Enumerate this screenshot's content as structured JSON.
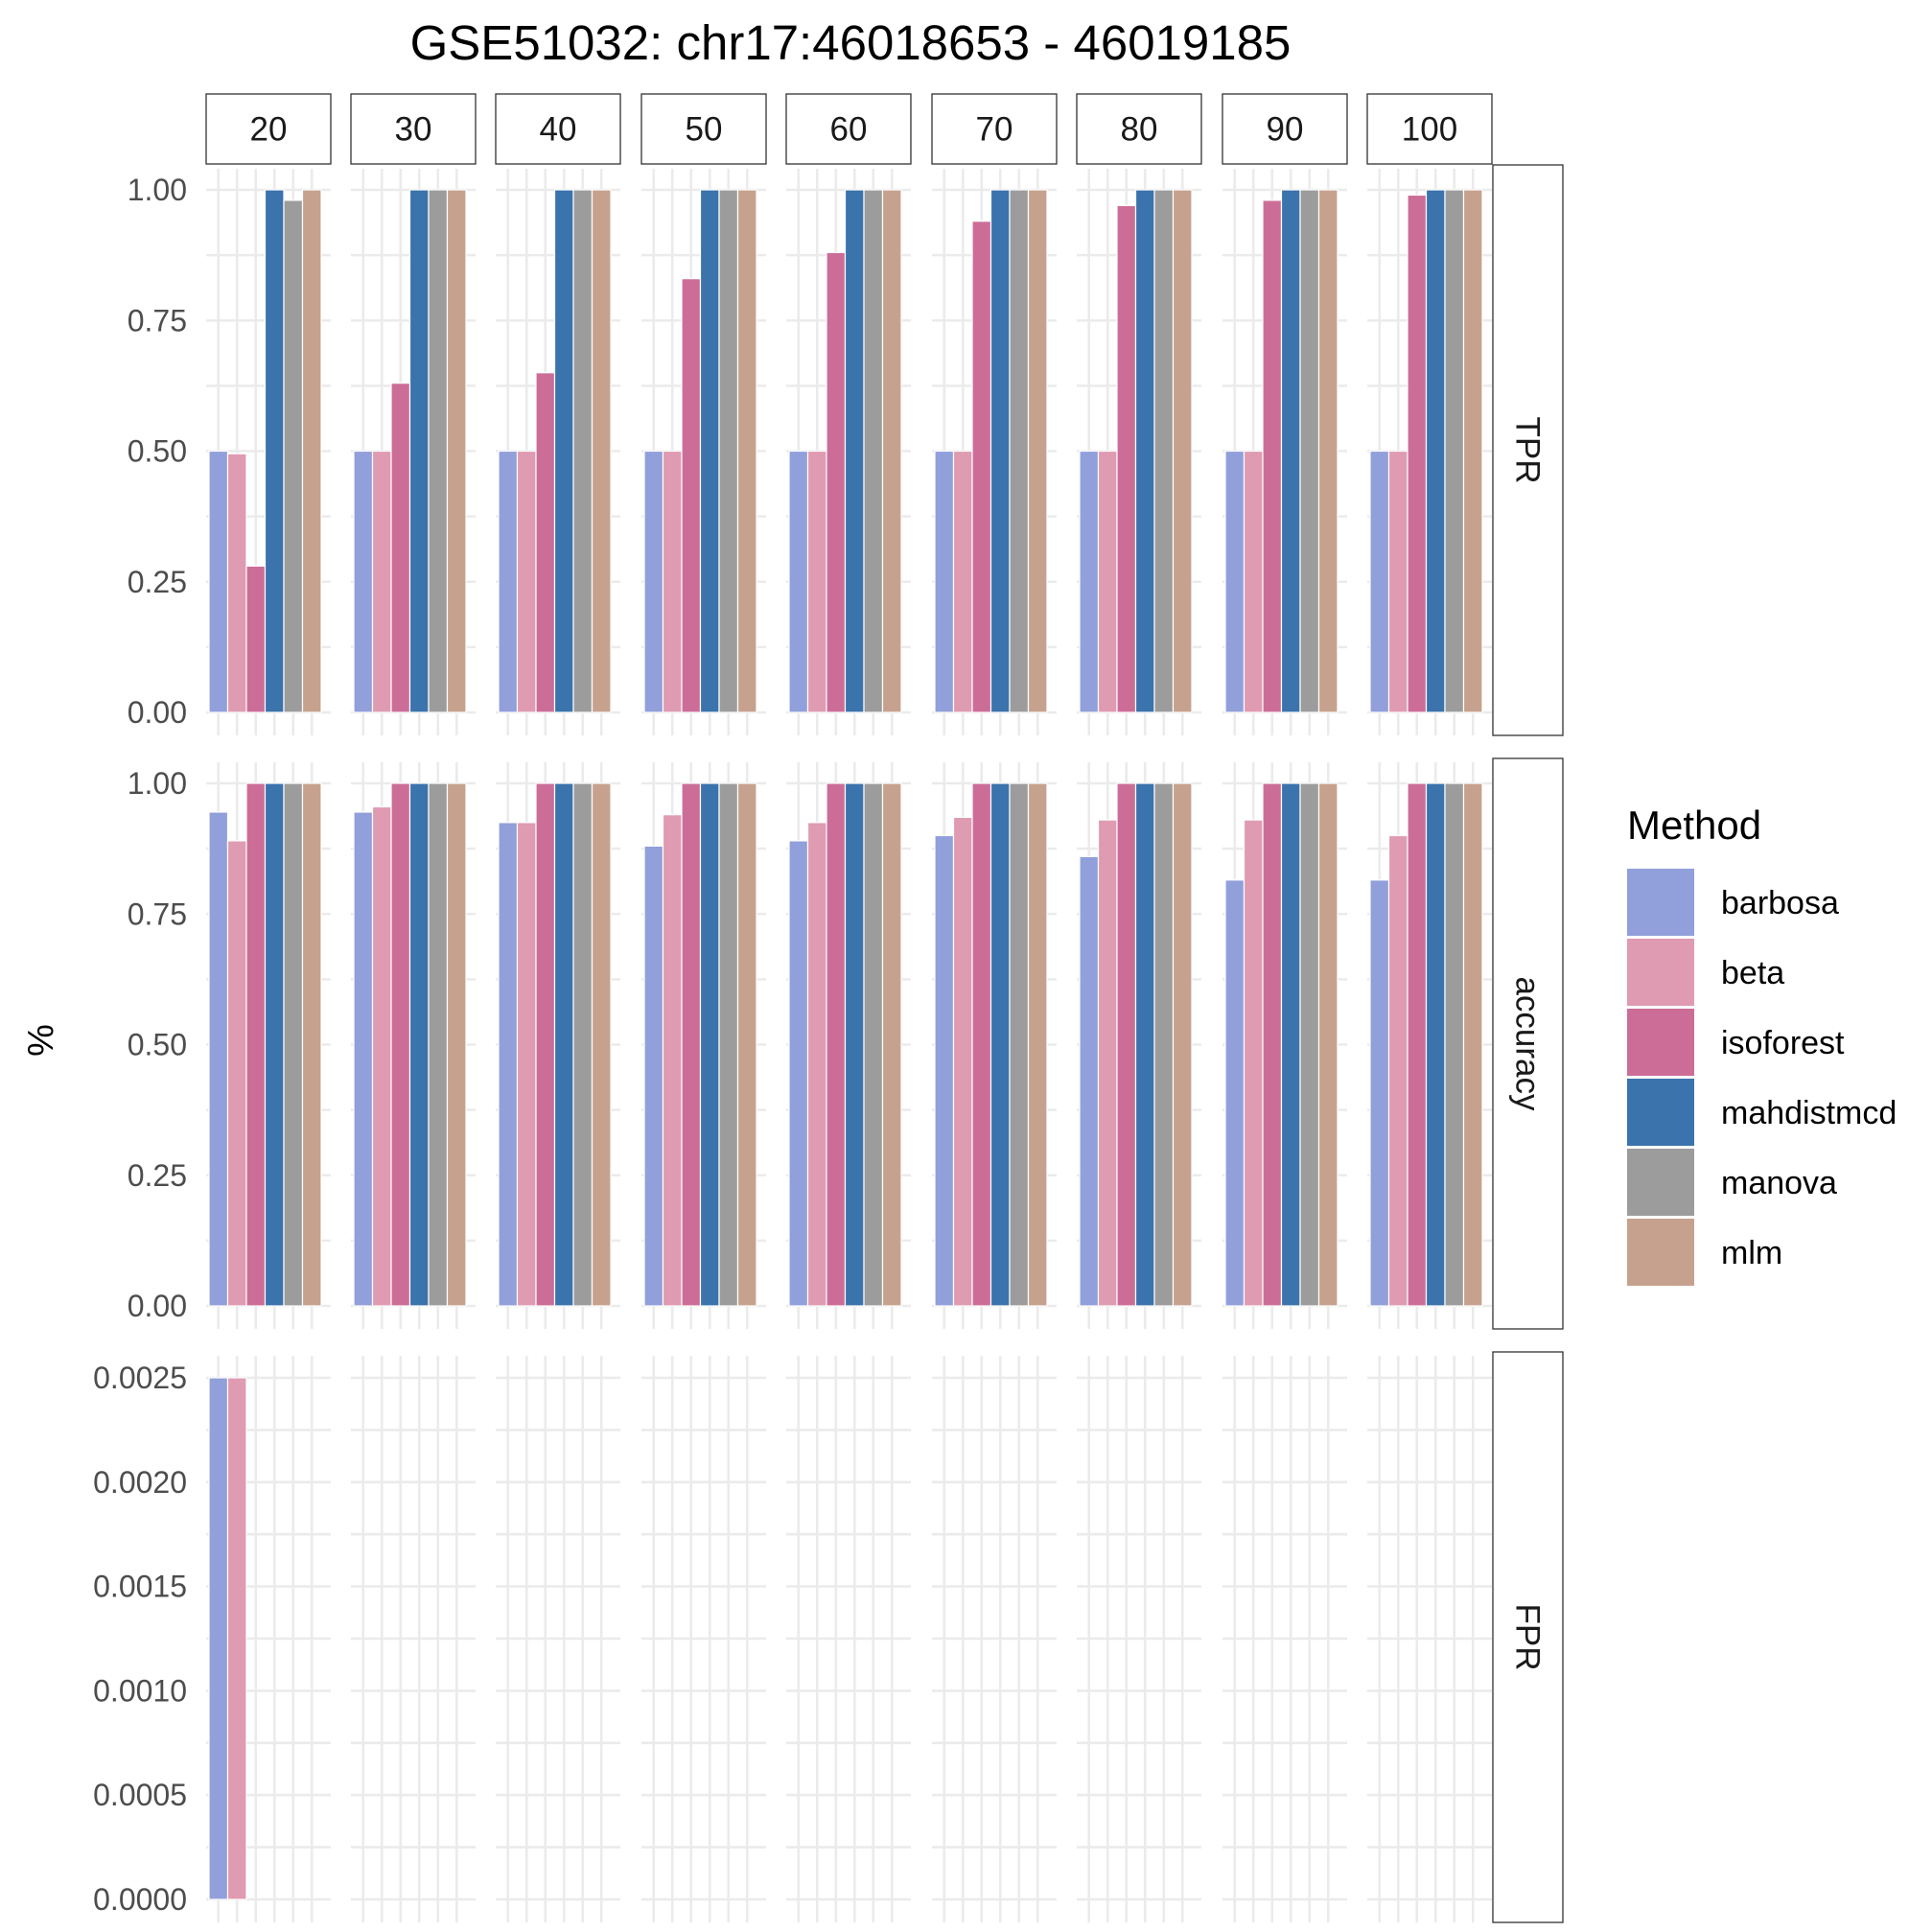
{
  "chart_data": {
    "type": "bar",
    "title": "GSE51032: chr17:46018653 - 46019185",
    "ylabel": "%",
    "xlabel": "",
    "columns": [
      "20",
      "30",
      "40",
      "50",
      "60",
      "70",
      "80",
      "90",
      "100"
    ],
    "methods": [
      "barbosa",
      "beta",
      "isoforest",
      "mahdistmcd",
      "manova",
      "mlm"
    ],
    "colors": {
      "barbosa": "#919FDA",
      "beta": "#DF9BB1",
      "isoforest": "#CC6D98",
      "mahdistmcd": "#3B73AC",
      "manova": "#9C9C9C",
      "mlm": "#C6A28E"
    },
    "legend": {
      "title": "Method",
      "position": "right"
    },
    "grid": true,
    "rows": [
      {
        "label": "TPR",
        "ylim": [
          0,
          1.0
        ],
        "ticks": [
          "0.00",
          "0.25",
          "0.50",
          "0.75",
          "1.00"
        ],
        "values": {
          "barbosa": [
            0.5,
            0.5,
            0.5,
            0.5,
            0.5,
            0.5,
            0.5,
            0.5,
            0.5
          ],
          "beta": [
            0.495,
            0.5,
            0.5,
            0.5,
            0.5,
            0.5,
            0.5,
            0.5,
            0.5
          ],
          "isoforest": [
            0.28,
            0.63,
            0.65,
            0.83,
            0.88,
            0.94,
            0.97,
            0.98,
            0.99
          ],
          "mahdistmcd": [
            1.0,
            1.0,
            1.0,
            1.0,
            1.0,
            1.0,
            1.0,
            1.0,
            1.0
          ],
          "manova": [
            0.98,
            1.0,
            1.0,
            1.0,
            1.0,
            1.0,
            1.0,
            1.0,
            1.0
          ],
          "mlm": [
            1.0,
            1.0,
            1.0,
            1.0,
            1.0,
            1.0,
            1.0,
            1.0,
            1.0
          ]
        }
      },
      {
        "label": "accuracy",
        "ylim": [
          0,
          1.0
        ],
        "ticks": [
          "0.00",
          "0.25",
          "0.50",
          "0.75",
          "1.00"
        ],
        "values": {
          "barbosa": [
            0.945,
            0.945,
            0.925,
            0.88,
            0.89,
            0.9,
            0.86,
            0.815,
            0.815
          ],
          "beta": [
            0.89,
            0.955,
            0.925,
            0.94,
            0.925,
            0.935,
            0.93,
            0.93,
            0.9
          ],
          "isoforest": [
            1.0,
            1.0,
            1.0,
            1.0,
            1.0,
            1.0,
            1.0,
            1.0,
            1.0
          ],
          "mahdistmcd": [
            1.0,
            1.0,
            1.0,
            1.0,
            1.0,
            1.0,
            1.0,
            1.0,
            1.0
          ],
          "manova": [
            1.0,
            1.0,
            1.0,
            1.0,
            1.0,
            1.0,
            1.0,
            1.0,
            1.0
          ],
          "mlm": [
            1.0,
            1.0,
            1.0,
            1.0,
            1.0,
            1.0,
            1.0,
            1.0,
            1.0
          ]
        }
      },
      {
        "label": "FPR",
        "ylim": [
          0,
          0.0025
        ],
        "ticks": [
          "0.0000",
          "0.0005",
          "0.0010",
          "0.0015",
          "0.0020",
          "0.0025"
        ],
        "values": {
          "barbosa": [
            0.0025,
            0,
            0,
            0,
            0,
            0,
            0,
            0,
            0
          ],
          "beta": [
            0.0025,
            0,
            0,
            0,
            0,
            0,
            0,
            0,
            0
          ],
          "isoforest": [
            0,
            0,
            0,
            0,
            0,
            0,
            0,
            0,
            0
          ],
          "mahdistmcd": [
            0,
            0,
            0,
            0,
            0,
            0,
            0,
            0,
            0
          ],
          "manova": [
            0,
            0,
            0,
            0,
            0,
            0,
            0,
            0,
            0
          ],
          "mlm": [
            0,
            0,
            0,
            0,
            0,
            0,
            0,
            0,
            0
          ]
        }
      }
    ]
  }
}
